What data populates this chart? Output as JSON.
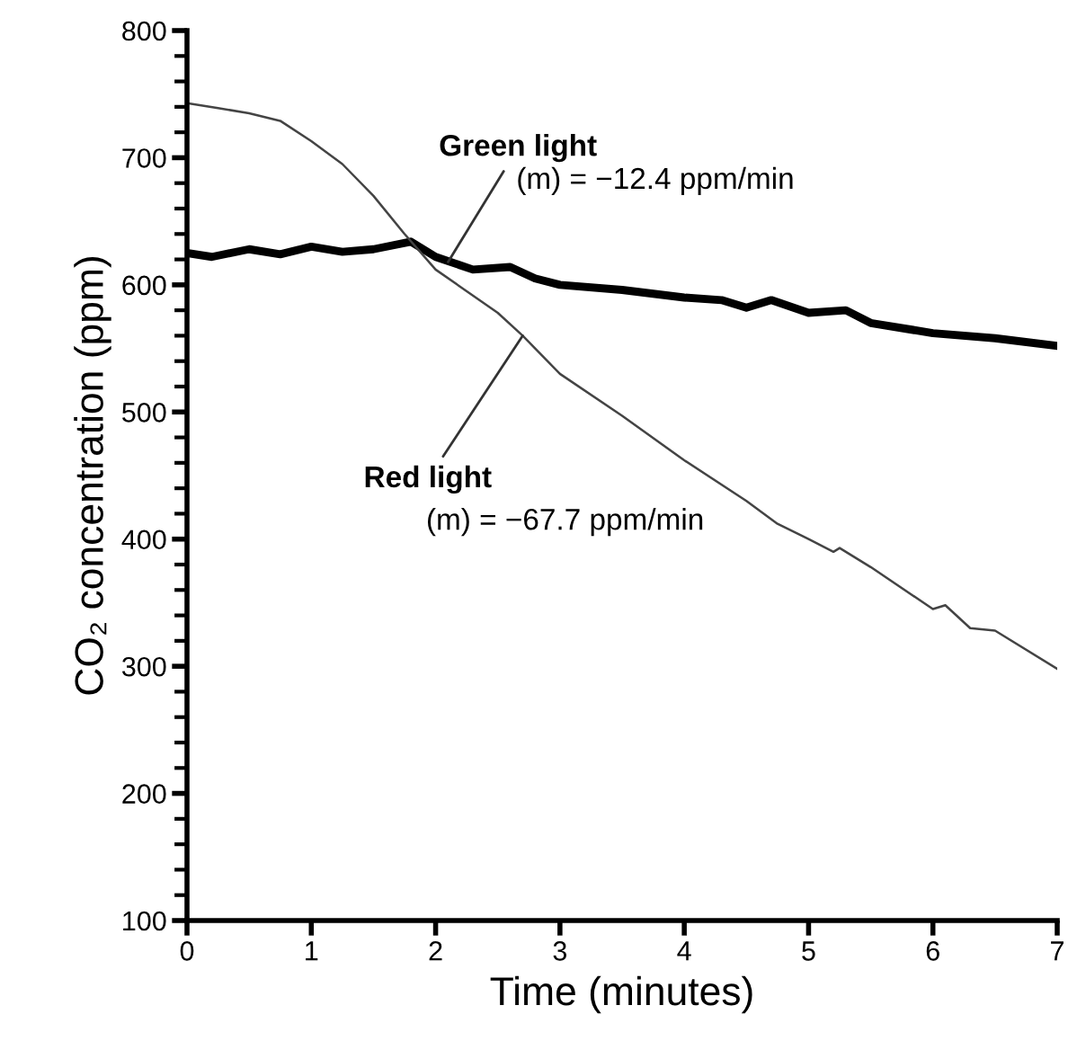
{
  "chart_data": {
    "type": "line",
    "xlabel": "Time (minutes)",
    "ylabel": "CO₂ concentration (ppm)",
    "xlim": [
      0,
      7
    ],
    "xticks": [
      0,
      1,
      2,
      3,
      4,
      5,
      6,
      7
    ],
    "ylim": [
      100,
      800
    ],
    "yticks": [
      100,
      200,
      300,
      400,
      500,
      600,
      700,
      800
    ],
    "grid": false,
    "marker": "none",
    "line_style": "solid",
    "series": [
      {
        "color": "#000000",
        "x": [
          0,
          0.2,
          0.5,
          0.75,
          1.0,
          1.25,
          1.5,
          1.8,
          2.0,
          2.3,
          2.6,
          2.8,
          3.0,
          3.5,
          4.0,
          4.3,
          4.5,
          4.7,
          5.0,
          5.3,
          5.5,
          6.0,
          6.5,
          7.0
        ],
        "values": [
          625,
          622,
          628,
          624,
          630,
          626,
          628,
          634,
          622,
          612,
          614,
          605,
          600,
          596,
          590,
          588,
          582,
          588,
          578,
          580,
          570,
          562,
          558,
          552
        ]
      },
      {
        "color": "#444444",
        "x": [
          0,
          0.25,
          0.5,
          0.75,
          1.0,
          1.25,
          1.5,
          1.75,
          2.0,
          2.5,
          2.7,
          3.0,
          3.5,
          4.0,
          4.5,
          4.75,
          5.0,
          5.2,
          5.25,
          5.5,
          6.0,
          6.1,
          6.3,
          6.5,
          7.0
        ],
        "values": [
          743,
          739,
          735,
          729,
          713,
          695,
          670,
          640,
          612,
          578,
          560,
          530,
          497,
          462,
          430,
          412,
          400,
          390,
          393,
          378,
          345,
          348,
          330,
          328,
          298
        ]
      }
    ],
    "annotations": [
      {
        "text": "Green light\n(m) = −12.4 ppm/min",
        "x": 2.1,
        "y": 618
      },
      {
        "text": "Red light\n(m) = −67.7 ppm/min",
        "x": 2.7,
        "y": 560
      }
    ]
  }
}
